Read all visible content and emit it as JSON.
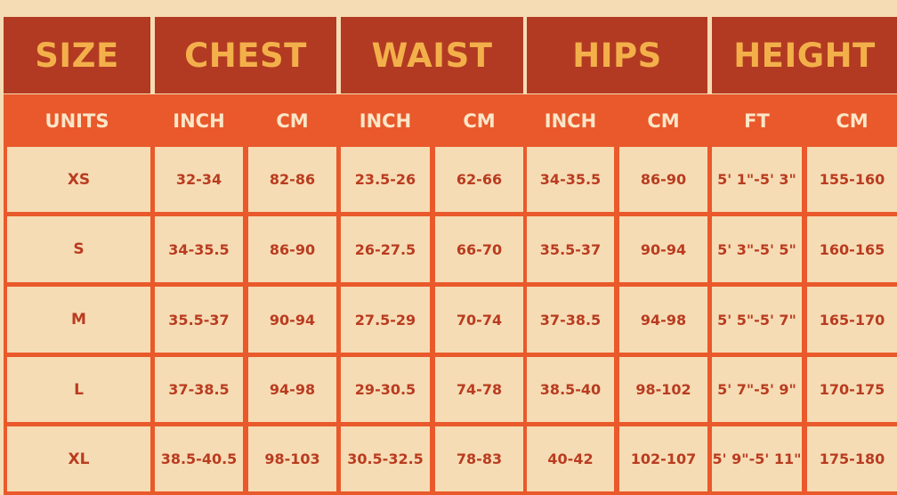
{
  "groups": [
    "SIZE",
    "CHEST",
    "WAIST",
    "HIPS",
    "HEIGHT"
  ],
  "subheaders": [
    "UNITS",
    "INCH",
    "CM",
    "INCH",
    "CM",
    "INCH",
    "CM",
    "FT",
    "CM"
  ],
  "rows": [
    [
      "XS",
      "32-34",
      "82-86",
      "23.5-26",
      "62-66",
      "34-35.5",
      "86-90",
      "5' 1\"-5' 3\"",
      "155-160"
    ],
    [
      "S",
      "34-35.5",
      "86-90",
      "26-27.5",
      "66-70",
      "35.5-37",
      "90-94",
      "5' 3\"-5' 5\"",
      "160-165"
    ],
    [
      "M",
      "35.5-37",
      "90-94",
      "27.5-29",
      "70-74",
      "37-38.5",
      "94-98",
      "5' 5\"-5' 7\"",
      "165-170"
    ],
    [
      "L",
      "37-38.5",
      "94-98",
      "29-30.5",
      "74-78",
      "38.5-40",
      "98-102",
      "5' 7\"-5' 9\"",
      "170-175"
    ],
    [
      "XL",
      "38.5-40.5",
      "98-103",
      "30.5-32.5",
      "78-83",
      "40-42",
      "102-107",
      "5' 9\"-5' 11\"",
      "175-180"
    ]
  ],
  "colors": {
    "header_dark": "#b23a22",
    "header_text": "#f3b04a",
    "subheader": "#e9592b",
    "subheader_text": "#fbe6c8",
    "cell_bg": "#f6dcb4",
    "cell_text": "#b93c20"
  }
}
